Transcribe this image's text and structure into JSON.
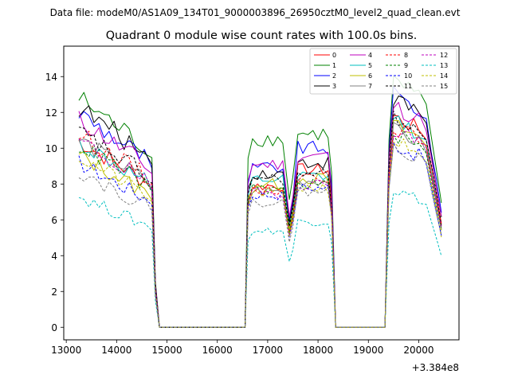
{
  "chart_data": {
    "type": "line",
    "suptitle": "Data file: modeM0/AS1A09_134T01_9000003896_26950cztM0_level2_quad_clean.evt",
    "title": "Quadrant 0 module wise count rates with 100.0s bins.",
    "xlabel": "",
    "ylabel": "",
    "x_offset_label": "+3.384e8",
    "xlim": [
      12950,
      20800
    ],
    "ylim": [
      -0.7,
      15.7
    ],
    "x_ticks": [
      13000,
      14000,
      15000,
      16000,
      17000,
      18000,
      19000,
      20000
    ],
    "y_ticks": [
      0,
      2,
      4,
      6,
      8,
      10,
      12,
      14
    ],
    "legend_position": "top-right",
    "segments": [
      {
        "start": 13250,
        "end": 14850
      },
      {
        "start": 16550,
        "end": 18350
      },
      {
        "start": 19350,
        "end": 20450
      }
    ],
    "series": [
      {
        "name": "0",
        "color": "#ff0000",
        "dash": "solid",
        "levels": [
          10.4,
          7.9,
          8.8,
          12.0,
          5.9
        ]
      },
      {
        "name": "1",
        "color": "#008000",
        "dash": "solid",
        "levels": [
          12.8,
          10.5,
          10.8,
          14.0,
          7.0
        ]
      },
      {
        "name": "2",
        "color": "#0000ff",
        "dash": "solid",
        "levels": [
          12.0,
          8.9,
          10.0,
          13.2,
          6.4
        ]
      },
      {
        "name": "3",
        "color": "#000000",
        "dash": "solid",
        "levels": [
          12.3,
          8.6,
          9.2,
          13.0,
          6.1
        ]
      },
      {
        "name": "4",
        "color": "#bf00bf",
        "dash": "solid",
        "levels": [
          11.6,
          9.1,
          9.6,
          12.6,
          6.1
        ]
      },
      {
        "name": "5",
        "color": "#00bfbf",
        "dash": "solid",
        "levels": [
          10.3,
          8.2,
          8.4,
          11.8,
          5.6
        ]
      },
      {
        "name": "6",
        "color": "#bfbf00",
        "dash": "solid",
        "levels": [
          9.6,
          8.0,
          8.3,
          11.5,
          5.5
        ]
      },
      {
        "name": "7",
        "color": "#808080",
        "dash": "solid",
        "levels": [
          10.5,
          7.6,
          8.2,
          11.2,
          5.6
        ]
      },
      {
        "name": "8",
        "color": "#ff0000",
        "dash": "dashed",
        "levels": [
          10.8,
          7.7,
          8.4,
          11.4,
          5.7
        ]
      },
      {
        "name": "9",
        "color": "#008000",
        "dash": "dashed",
        "levels": [
          10.2,
          7.7,
          8.0,
          11.0,
          5.4
        ]
      },
      {
        "name": "10",
        "color": "#0000ff",
        "dash": "dashed",
        "levels": [
          9.2,
          7.4,
          7.8,
          10.4,
          5.0
        ]
      },
      {
        "name": "11",
        "color": "#000000",
        "dash": "dashed",
        "levels": [
          10.9,
          8.3,
          8.5,
          12.0,
          5.8
        ]
      },
      {
        "name": "12",
        "color": "#bf00bf",
        "dash": "dashed",
        "levels": [
          10.4,
          7.5,
          8.0,
          11.3,
          5.6
        ]
      },
      {
        "name": "13",
        "color": "#00bfbf",
        "dash": "dashed",
        "levels": [
          7.3,
          5.4,
          5.9,
          7.8,
          4.0
        ]
      },
      {
        "name": "14",
        "color": "#bfbf00",
        "dash": "dashed",
        "levels": [
          9.5,
          7.5,
          7.8,
          10.6,
          5.0
        ]
      },
      {
        "name": "15",
        "color": "#808080",
        "dash": "dashed",
        "levels": [
          8.7,
          7.0,
          7.6,
          10.3,
          5.1
        ]
      }
    ]
  }
}
